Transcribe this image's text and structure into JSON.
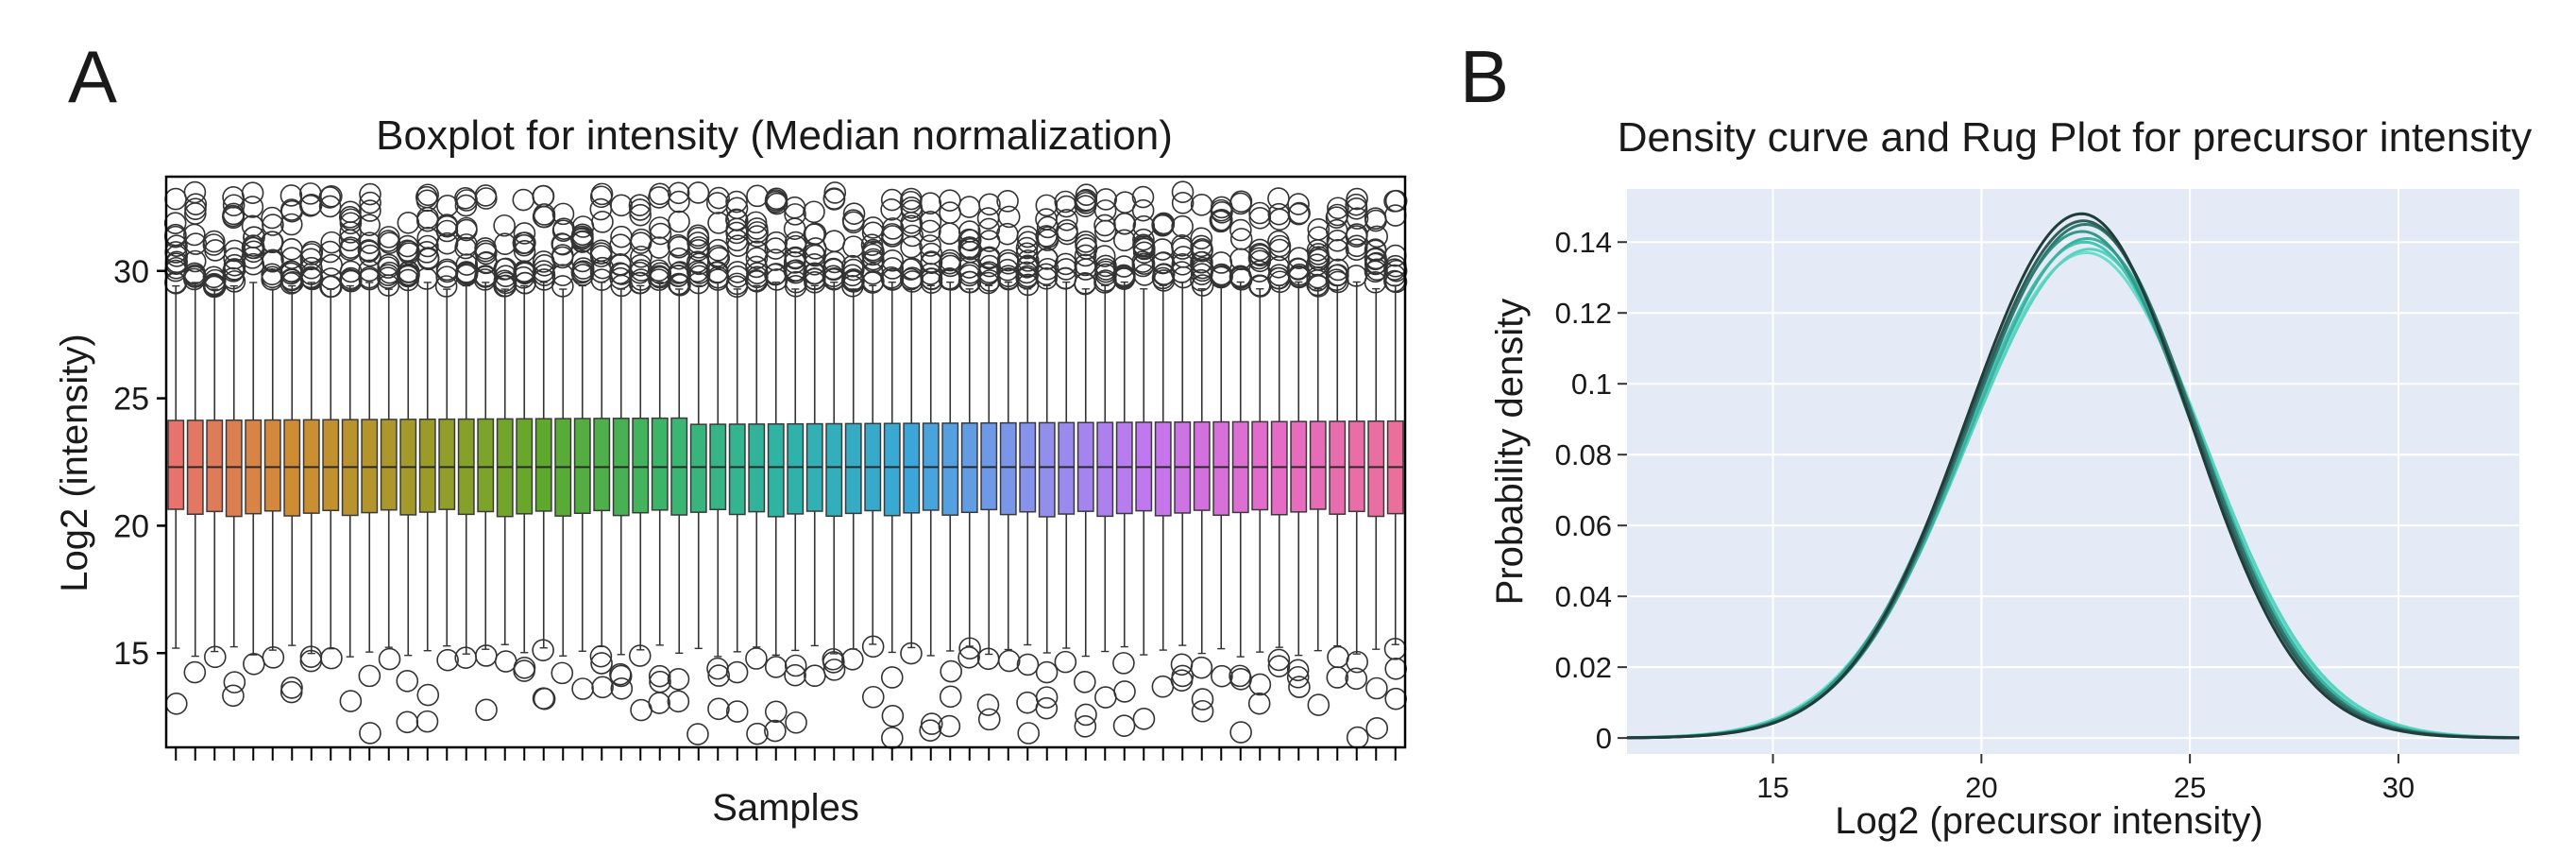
{
  "panels": {
    "a": {
      "letter": "A"
    },
    "b": {
      "letter": "B"
    }
  },
  "chart_data": [
    {
      "type": "box",
      "title": "Boxplot for intensity (Median normalization)",
      "xlabel": "Samples",
      "ylabel": "Log2 (intensity)",
      "ylim": [
        11.3,
        33.7
      ],
      "yticks": [
        15,
        20,
        25,
        30
      ],
      "grid": false,
      "legend": "none",
      "n_samples": 64,
      "box_summary": {
        "median": 22.3,
        "q1": 20.5,
        "q3": 24.1,
        "whisker_low": 15.1,
        "whisker_high": 29.4
      },
      "outliers_high_range": [
        29.4,
        33.0
      ],
      "outliers_low_range": [
        11.7,
        15.7
      ],
      "colors": [
        "#e8736c",
        "#cf8d32",
        "#9f9b28",
        "#5fa92c",
        "#3cb56a",
        "#2fb3a8",
        "#3aa7d9",
        "#8892ec",
        "#c476ee",
        "#e66bc7",
        "#ea6f9a"
      ]
    },
    {
      "type": "line",
      "title": "Density curve and Rug Plot for precursor intensity",
      "xlabel": "Log2 (precursor intensity)",
      "ylabel": "Probability density",
      "xlim": [
        11.5,
        32.9
      ],
      "ylim": [
        -0.0045,
        0.155
      ],
      "xticks": [
        15,
        20,
        25,
        30
      ],
      "yticks": [
        0,
        0.02,
        0.04,
        0.06,
        0.08,
        0.1,
        0.12,
        0.14
      ],
      "ytick_labels": [
        "0",
        "0.02",
        "0.04",
        "0.06",
        "0.08",
        "0.1",
        "0.12",
        "0.14"
      ],
      "grid": true,
      "legend": "none",
      "background": "#e5ebf6",
      "series": [
        {
          "mean": 22.4,
          "sd": 2.69,
          "peak": 0.148,
          "color": "#1f3d3a"
        },
        {
          "mean": 22.45,
          "sd": 2.72,
          "peak": 0.146,
          "color": "#2f5e58"
        },
        {
          "mean": 22.5,
          "sd": 2.74,
          "peak": 0.145,
          "color": "#2e7a70"
        },
        {
          "mean": 22.42,
          "sd": 2.76,
          "peak": 0.143,
          "color": "#35988a"
        },
        {
          "mean": 22.55,
          "sd": 2.78,
          "peak": 0.141,
          "color": "#3db2a2"
        },
        {
          "mean": 22.48,
          "sd": 2.8,
          "peak": 0.14,
          "color": "#47c4b2"
        },
        {
          "mean": 22.6,
          "sd": 2.84,
          "peak": 0.138,
          "color": "#58d3c0"
        },
        {
          "mean": 22.52,
          "sd": 2.86,
          "peak": 0.137,
          "color": "#6adecb"
        }
      ]
    }
  ]
}
